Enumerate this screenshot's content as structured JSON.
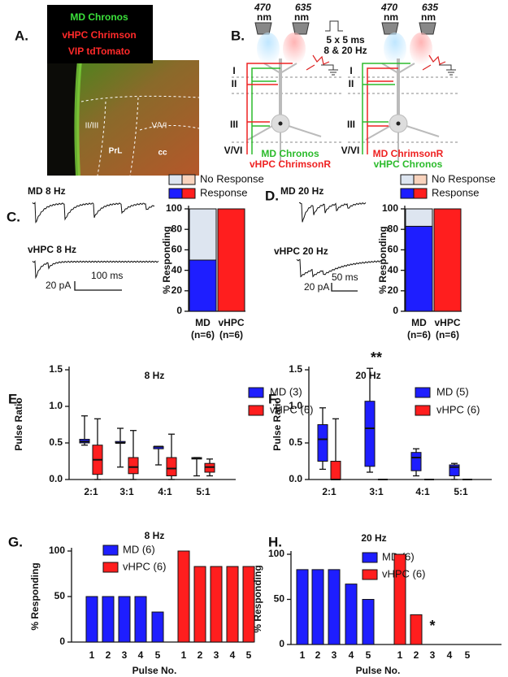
{
  "figure": {
    "panel_labels": [
      "A.",
      "B.",
      "C.",
      "D.",
      "E.",
      "F.",
      "G.",
      "H."
    ],
    "image_legend": [
      "MD Chronos",
      "vHPC Chrimson",
      "VIP tdTomato"
    ],
    "image_labels": [
      "II/III",
      "V/VI",
      "PrL",
      "cc"
    ],
    "diagram": {
      "wavelengths": [
        "470",
        "635"
      ],
      "unit": "nm",
      "stimulus": [
        "5 x 5 ms",
        "8 & 20 Hz"
      ],
      "layers": [
        "I",
        "II",
        "III",
        "V/VI"
      ],
      "left_caption": [
        "MD Chronos",
        "vHPC ChrimsonR"
      ],
      "right_caption": [
        "MD ChrimsonR",
        "vHPC Chronos"
      ]
    },
    "traces": {
      "C": {
        "top": "MD 8 Hz",
        "bottom": "vHPC 8 Hz",
        "scale_y": "20 pA",
        "scale_x": "100 ms"
      },
      "D": {
        "top": "MD 20 Hz",
        "bottom": "vHPC 20 Hz",
        "scale_y": "20 pA",
        "scale_x": "50 ms"
      }
    }
  },
  "chart_data": [
    {
      "type": "bar",
      "stacked": true,
      "categories": [
        "MD",
        "vHPC"
      ],
      "n_labels": [
        "(n=6)",
        "(n=6)"
      ],
      "y_label": "% Responding",
      "ylim": [
        0,
        100
      ],
      "yticks": [
        0,
        20,
        40,
        60,
        80,
        100
      ],
      "series": [
        {
          "name": "Response",
          "colors": [
            "#1e1eff",
            "#ff1e1e"
          ],
          "values": [
            50,
            100
          ]
        },
        {
          "name": "No Response",
          "colors": [
            "#dde5f0",
            "#f9d3bd"
          ],
          "values": [
            50,
            0
          ]
        }
      ]
    },
    {
      "type": "bar",
      "stacked": true,
      "categories": [
        "MD",
        "vHPC"
      ],
      "n_labels": [
        "(n=6)",
        "(n=6)"
      ],
      "y_label": "% Responding",
      "ylim": [
        0,
        100
      ],
      "yticks": [
        0,
        20,
        40,
        60,
        80,
        100
      ],
      "series": [
        {
          "name": "Response",
          "colors": [
            "#1e1eff",
            "#ff1e1e"
          ],
          "values": [
            83,
            100
          ]
        },
        {
          "name": "No Response",
          "colors": [
            "#dde5f0",
            "#f9d3bd"
          ],
          "values": [
            17,
            0
          ]
        }
      ]
    },
    {
      "type": "box",
      "title": "8 Hz",
      "y_label": "Pulse Ratio",
      "categories": [
        "2:1",
        "3:1",
        "4:1",
        "5:1"
      ],
      "ylim": [
        0,
        1.5
      ],
      "yticks": [
        {
          "value": 0,
          "label": "0.0"
        },
        0.5,
        {
          "value": 1,
          "label": "1.0"
        },
        1.5
      ],
      "series": [
        {
          "name": "MD (3)",
          "color": "#1e1eff",
          "values": [
            [
              0.47,
              0.5,
              0.52,
              0.55,
              0.87
            ],
            [
              0.17,
              0.5,
              0.5,
              0.52,
              0.7
            ],
            [
              0.2,
              0.42,
              0.45,
              0.45,
              0.45
            ],
            [
              0.05,
              0.28,
              0.29,
              0.3,
              0.3
            ]
          ]
        },
        {
          "name": "vHPC (6)",
          "color": "#ff1e1e",
          "values": [
            [
              0,
              0.07,
              0.27,
              0.47,
              0.83
            ],
            [
              0,
              0.08,
              0.17,
              0.3,
              0.67
            ],
            [
              0,
              0.05,
              0.15,
              0.3,
              0.62
            ],
            [
              0.05,
              0.1,
              0.17,
              0.22,
              0.28
            ]
          ]
        }
      ]
    },
    {
      "type": "box",
      "title": "20 Hz",
      "y_label": "Pulse Ratio",
      "categories": [
        "2:1",
        "3:1",
        "4:1",
        "5:1"
      ],
      "ylim": [
        0,
        1.5
      ],
      "yticks": [
        {
          "value": 0,
          "label": "0.0"
        },
        0.5,
        {
          "value": 1,
          "label": "1.0"
        },
        1.5
      ],
      "series": [
        {
          "name": "MD (5)",
          "color": "#1e1eff",
          "values": [
            [
              0.14,
              0.25,
              0.55,
              0.75,
              0.98
            ],
            [
              0.1,
              0.18,
              0.7,
              1.07,
              1.52
            ],
            [
              0.05,
              0.12,
              0.3,
              0.37,
              0.42
            ],
            [
              0,
              0.05,
              0.17,
              0.2,
              0.22
            ]
          ]
        },
        {
          "name": "vHPC (6)",
          "color": "#ff1e1e",
          "values": [
            [
              0,
              0,
              0,
              0.25,
              0.83
            ],
            [
              0,
              0,
              0,
              0,
              0
            ],
            [
              0,
              0,
              0,
              0,
              0
            ],
            [
              0,
              0,
              0,
              0,
              0
            ]
          ]
        }
      ],
      "annotations": [
        {
          "text": "**",
          "category": 1
        }
      ]
    },
    {
      "type": "bar",
      "title": "8 Hz",
      "x_label": "Pulse No.",
      "y_label": "% Responding",
      "categories": [
        "1",
        "2",
        "3",
        "4",
        "5"
      ],
      "ylim": [
        0,
        100
      ],
      "yticks": [
        0,
        50,
        100
      ],
      "series": [
        {
          "name": "MD (6)",
          "color": "#1e1eff",
          "values": [
            50,
            50,
            50,
            50,
            33
          ]
        },
        {
          "name": "vHPC (6)",
          "color": "#ff1e1e",
          "values": [
            100,
            83,
            83,
            83,
            83
          ]
        }
      ]
    },
    {
      "type": "bar",
      "title": "20 Hz",
      "x_label": "Pulse No.",
      "y_label": "% Responding",
      "categories": [
        "1",
        "2",
        "3",
        "4",
        "5"
      ],
      "ylim": [
        0,
        100
      ],
      "yticks": [
        0,
        50,
        100
      ],
      "series": [
        {
          "name": "MD (6)",
          "color": "#1e1eff",
          "values": [
            83,
            83,
            83,
            67,
            50
          ]
        },
        {
          "name": "vHPC (6)",
          "color": "#ff1e1e",
          "values": [
            100,
            33,
            0,
            0,
            0
          ]
        }
      ],
      "annotations": [
        {
          "text": "*",
          "series": 1,
          "category": 2
        }
      ]
    }
  ]
}
